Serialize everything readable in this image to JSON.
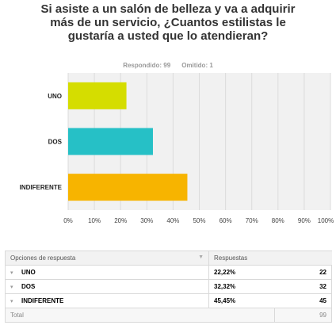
{
  "question": {
    "title": "Si asiste a un salón de belleza y va a adquirir más de un servicio, ¿Cuantos estilistas le gustaría a usted que lo atendieran?",
    "answered": "Respondido: 99",
    "skipped": "Omitido: 1"
  },
  "chart_data": {
    "type": "bar",
    "orientation": "horizontal",
    "categories": [
      "UNO",
      "DOS",
      "INDIFERENTE"
    ],
    "values": [
      22.22,
      32.32,
      45.45
    ],
    "colors": [
      "#d5dd00",
      "#26c0c6",
      "#f7b400"
    ],
    "xlim": [
      0,
      100
    ],
    "xticks": [
      "0%",
      "10%",
      "20%",
      "30%",
      "40%",
      "50%",
      "60%",
      "70%",
      "80%",
      "90%",
      "100%"
    ],
    "grid": true,
    "background": "#f1f1f1"
  },
  "table": {
    "headers": [
      "Opciones de respuesta",
      "Respuestas"
    ],
    "rows": [
      {
        "option": "UNO",
        "percent": "22,22%",
        "count": "22"
      },
      {
        "option": "DOS",
        "percent": "32,32%",
        "count": "32"
      },
      {
        "option": "INDIFERENTE",
        "percent": "45,45%",
        "count": "45"
      }
    ],
    "total_label": "Total",
    "total_value": "99"
  }
}
